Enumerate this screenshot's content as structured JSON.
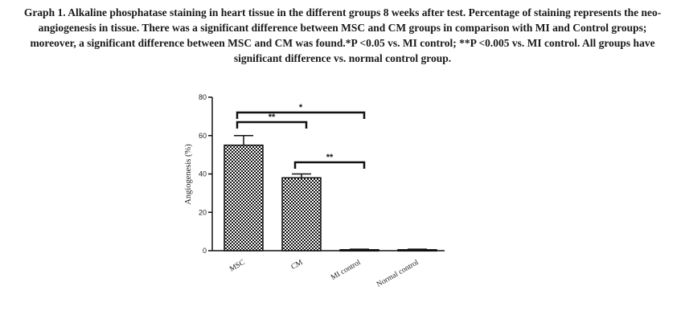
{
  "caption": "Graph 1. Alkaline phosphatase staining in heart tissue in the different groups 8 weeks after test. Percentage of staining represents the neo-angiogenesis in tissue. There was a significant difference between MSC and CM groups in comparison with MI and Control groups; moreover, a significant difference between MSC and CM was found.*P <0.05 vs. MI control; **P <0.005 vs. MI control. All groups have significant difference vs. normal control group.",
  "chart_data": {
    "type": "bar",
    "title": "",
    "ylabel": "Angiogenesis (%)",
    "xlabel": "",
    "categories": [
      "MSC",
      "CM",
      "MI control",
      "Normal control"
    ],
    "values": [
      55,
      38,
      0.5,
      0.5
    ],
    "error": [
      5,
      2,
      0.3,
      0.3
    ],
    "ylim": [
      0,
      80
    ],
    "yticks": [
      0,
      20,
      40,
      60,
      80
    ],
    "grid": false,
    "bar_fill": "checkered",
    "significance": [
      {
        "from": 0,
        "to": 2,
        "label": "*"
      },
      {
        "from": 0,
        "to": 1,
        "label": "**"
      },
      {
        "from": 1,
        "to": 2,
        "label": "**"
      }
    ]
  }
}
